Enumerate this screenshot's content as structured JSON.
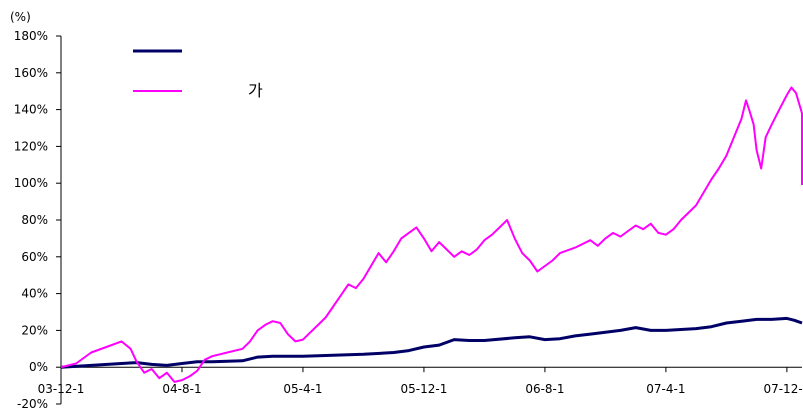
{
  "chart_data": {
    "type": "line",
    "unit_label": "(%)",
    "y_ticks": [
      "180%",
      "160%",
      "140%",
      "120%",
      "100%",
      "80%",
      "60%",
      "40%",
      "20%",
      "0%",
      "-20%"
    ],
    "y_tick_values": [
      180,
      160,
      140,
      120,
      100,
      80,
      60,
      40,
      20,
      0,
      -20
    ],
    "ylim": [
      -20,
      180
    ],
    "x_tick_labels": [
      "03-12-1",
      "04-8-1",
      "05-4-1",
      "05-12-1",
      "06-8-1",
      "07-4-1",
      "07-12-1"
    ],
    "x_tick_positions": [
      0,
      8,
      16,
      24,
      32,
      40,
      48
    ],
    "x_unit": "months since 03-12-1",
    "xlim": [
      0,
      49
    ],
    "legend": {
      "position": "top-left"
    },
    "series": [
      {
        "name": "",
        "color": "#000066",
        "points": [
          [
            0,
            0
          ],
          [
            2,
            1
          ],
          [
            4,
            2
          ],
          [
            5,
            2.5
          ],
          [
            6,
            1.5
          ],
          [
            7,
            1
          ],
          [
            8,
            2
          ],
          [
            9,
            3
          ],
          [
            10,
            3
          ],
          [
            12,
            3.5
          ],
          [
            13,
            5.5
          ],
          [
            14,
            6
          ],
          [
            16,
            6
          ],
          [
            18,
            6.5
          ],
          [
            20,
            7
          ],
          [
            22,
            8
          ],
          [
            23,
            9
          ],
          [
            24,
            11
          ],
          [
            25,
            12
          ],
          [
            26,
            15
          ],
          [
            27,
            14.5
          ],
          [
            28,
            14.5
          ],
          [
            30,
            16
          ],
          [
            31,
            16.5
          ],
          [
            32,
            15
          ],
          [
            33,
            15.5
          ],
          [
            34,
            17
          ],
          [
            35,
            18
          ],
          [
            36,
            19
          ],
          [
            37,
            20
          ],
          [
            38,
            21.5
          ],
          [
            39,
            20
          ],
          [
            40,
            20
          ],
          [
            41,
            20.5
          ],
          [
            42,
            21
          ],
          [
            43,
            22
          ],
          [
            44,
            24
          ],
          [
            45,
            25
          ],
          [
            46,
            26
          ],
          [
            47,
            26
          ],
          [
            48,
            26.5
          ],
          [
            48.5,
            25.5
          ],
          [
            49,
            24
          ]
        ]
      },
      {
        "name": "가",
        "color": "#ff00ff",
        "points": [
          [
            0,
            0
          ],
          [
            1,
            2
          ],
          [
            2,
            8
          ],
          [
            3,
            11
          ],
          [
            4,
            14
          ],
          [
            4.6,
            10
          ],
          [
            5,
            3
          ],
          [
            5.5,
            -3
          ],
          [
            6,
            -1
          ],
          [
            6.5,
            -6
          ],
          [
            7,
            -3
          ],
          [
            7.5,
            -8
          ],
          [
            8,
            -7
          ],
          [
            8.5,
            -5
          ],
          [
            9,
            -2
          ],
          [
            9.5,
            4
          ],
          [
            10,
            6
          ],
          [
            11,
            8
          ],
          [
            12,
            10
          ],
          [
            12.5,
            14
          ],
          [
            13,
            20
          ],
          [
            13.5,
            23
          ],
          [
            14,
            25
          ],
          [
            14.5,
            24
          ],
          [
            15,
            18
          ],
          [
            15.5,
            14
          ],
          [
            16,
            15
          ],
          [
            16.5,
            19
          ],
          [
            17,
            23
          ],
          [
            17.5,
            27
          ],
          [
            18,
            33
          ],
          [
            18.5,
            39
          ],
          [
            19,
            45
          ],
          [
            19.5,
            43
          ],
          [
            20,
            48
          ],
          [
            20.5,
            55
          ],
          [
            21,
            62
          ],
          [
            21.5,
            57
          ],
          [
            22,
            63
          ],
          [
            22.5,
            70
          ],
          [
            23,
            73
          ],
          [
            23.5,
            76
          ],
          [
            24,
            70
          ],
          [
            24.5,
            63
          ],
          [
            25,
            68
          ],
          [
            25.5,
            64
          ],
          [
            26,
            60
          ],
          [
            26.5,
            63
          ],
          [
            27,
            61
          ],
          [
            27.5,
            64
          ],
          [
            28,
            69
          ],
          [
            28.5,
            72
          ],
          [
            29,
            76
          ],
          [
            29.5,
            80
          ],
          [
            30,
            70
          ],
          [
            30.5,
            62
          ],
          [
            31,
            58
          ],
          [
            31.5,
            52
          ],
          [
            32,
            55
          ],
          [
            32.5,
            58
          ],
          [
            33,
            62
          ],
          [
            34,
            65
          ],
          [
            35,
            69
          ],
          [
            35.5,
            66
          ],
          [
            36,
            70
          ],
          [
            36.5,
            73
          ],
          [
            37,
            71
          ],
          [
            37.5,
            74
          ],
          [
            38,
            77
          ],
          [
            38.5,
            75
          ],
          [
            39,
            78
          ],
          [
            39.5,
            73
          ],
          [
            40,
            72
          ],
          [
            40.5,
            75
          ],
          [
            41,
            80
          ],
          [
            41.5,
            84
          ],
          [
            42,
            88
          ],
          [
            42.5,
            95
          ],
          [
            43,
            102
          ],
          [
            43.5,
            108
          ],
          [
            44,
            115
          ],
          [
            44.5,
            125
          ],
          [
            45,
            135
          ],
          [
            45.3,
            145
          ],
          [
            45.5,
            140
          ],
          [
            45.8,
            132
          ],
          [
            46,
            118
          ],
          [
            46.3,
            108
          ],
          [
            46.6,
            125
          ],
          [
            47,
            132
          ],
          [
            47.5,
            140
          ],
          [
            48,
            148
          ],
          [
            48.3,
            152
          ],
          [
            48.6,
            149
          ],
          [
            49,
            138
          ],
          [
            49.3,
            125
          ],
          [
            49.6,
            130
          ],
          [
            49.9,
            121
          ],
          [
            50.2,
            107
          ],
          [
            50.5,
            99
          ]
        ]
      }
    ]
  }
}
